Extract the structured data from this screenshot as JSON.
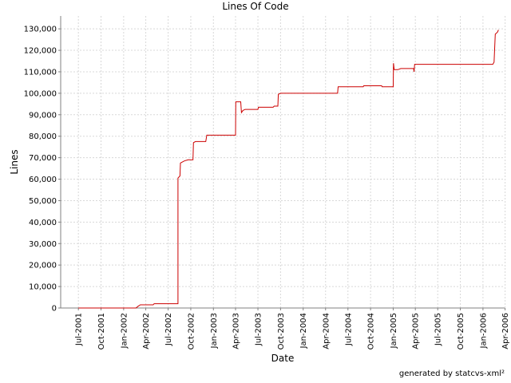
{
  "chart_data": {
    "type": "line",
    "title": "Lines Of Code",
    "xlabel": "Date",
    "ylabel": "Lines",
    "footer": "generated by statcvs-xml²",
    "grid": true,
    "line_color": "#cc0000",
    "xlim": [
      "2001-04-20",
      "2006-03-30"
    ],
    "ylim": [
      0,
      136000
    ],
    "x_ticks": [
      "Jul-2001",
      "Oct-2001",
      "Jan-2002",
      "Apr-2002",
      "Jul-2002",
      "Oct-2002",
      "Jan-2003",
      "Apr-2003",
      "Jul-2003",
      "Oct-2003",
      "Jan-2004",
      "Apr-2004",
      "Jul-2004",
      "Oct-2004",
      "Jan-2005",
      "Apr-2005",
      "Jul-2005",
      "Oct-2005",
      "Jan-2006",
      "Apr-2006"
    ],
    "y_ticks": [
      "0",
      "10,000",
      "20,000",
      "30,000",
      "40,000",
      "50,000",
      "60,000",
      "70,000",
      "80,000",
      "90,000",
      "100,000",
      "110,000",
      "120,000",
      "130,000"
    ],
    "series": [
      {
        "points": [
          [
            "2001-07-01",
            0
          ],
          [
            "2002-02-20",
            0
          ],
          [
            "2002-03-01",
            800
          ],
          [
            "2002-03-10",
            1500
          ],
          [
            "2002-05-01",
            1500
          ],
          [
            "2002-05-05",
            2000
          ],
          [
            "2002-08-10",
            2000
          ],
          [
            "2002-08-10",
            60500
          ],
          [
            "2002-08-18",
            61500
          ],
          [
            "2002-08-20",
            67500
          ],
          [
            "2002-09-05",
            68500
          ],
          [
            "2002-09-20",
            69000
          ],
          [
            "2002-10-10",
            69000
          ],
          [
            "2002-10-12",
            77000
          ],
          [
            "2002-10-20",
            77500
          ],
          [
            "2002-12-01",
            77500
          ],
          [
            "2002-12-05",
            80500
          ],
          [
            "2003-04-01",
            80500
          ],
          [
            "2003-04-02",
            96000
          ],
          [
            "2003-04-22",
            96000
          ],
          [
            "2003-04-25",
            91000
          ],
          [
            "2003-05-01",
            92000
          ],
          [
            "2003-05-10",
            92500
          ],
          [
            "2003-07-01",
            92500
          ],
          [
            "2003-07-03",
            93500
          ],
          [
            "2003-09-01",
            93500
          ],
          [
            "2003-09-05",
            94000
          ],
          [
            "2003-09-20",
            94000
          ],
          [
            "2003-09-22",
            99500
          ],
          [
            "2003-10-01",
            100000
          ],
          [
            "2004-05-20",
            100000
          ],
          [
            "2004-05-22",
            103000
          ],
          [
            "2004-09-01",
            103000
          ],
          [
            "2004-09-03",
            103500
          ],
          [
            "2004-11-15",
            103500
          ],
          [
            "2004-11-17",
            103000
          ],
          [
            "2005-01-01",
            103000
          ],
          [
            "2005-01-02",
            114000
          ],
          [
            "2005-01-05",
            111000
          ],
          [
            "2005-01-20",
            111000
          ],
          [
            "2005-02-01",
            111500
          ],
          [
            "2005-03-25",
            111500
          ],
          [
            "2005-03-27",
            110000
          ],
          [
            "2005-03-29",
            113500
          ],
          [
            "2006-02-10",
            113500
          ],
          [
            "2006-02-15",
            114500
          ],
          [
            "2006-02-20",
            127500
          ],
          [
            "2006-03-01",
            128500
          ],
          [
            "2006-03-05",
            129500
          ]
        ]
      }
    ]
  }
}
